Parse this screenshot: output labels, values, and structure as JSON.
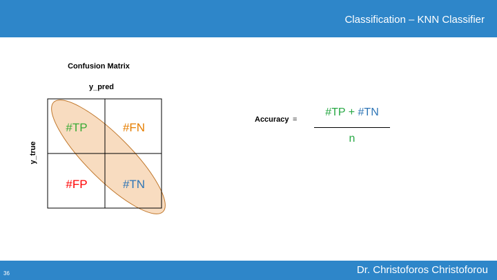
{
  "header": {
    "title": "Classification – KNN Classifier"
  },
  "footer": {
    "author": "Dr. Christoforos Christoforou",
    "slide_number": "36"
  },
  "confusion_matrix": {
    "title": "Confusion Matrix",
    "x_label": "y_pred",
    "y_label": "y_true",
    "cells": {
      "tp": "#TP",
      "fn": "#FN",
      "fp": "#FP",
      "tn": "#TN"
    }
  },
  "formula": {
    "label": "Accuracy",
    "equals": "=",
    "numerator_tp": "#TP",
    "numerator_plus": "+",
    "numerator_tn": "#TN",
    "denominator": "n"
  },
  "colors": {
    "bar": "#2E86C9",
    "tp": "#3AAA35",
    "fn": "#E67E00",
    "fp": "#FF0000",
    "tn": "#2E75B6",
    "ellipse_fill": "#F8DCC0",
    "ellipse_stroke": "#C0772B"
  }
}
